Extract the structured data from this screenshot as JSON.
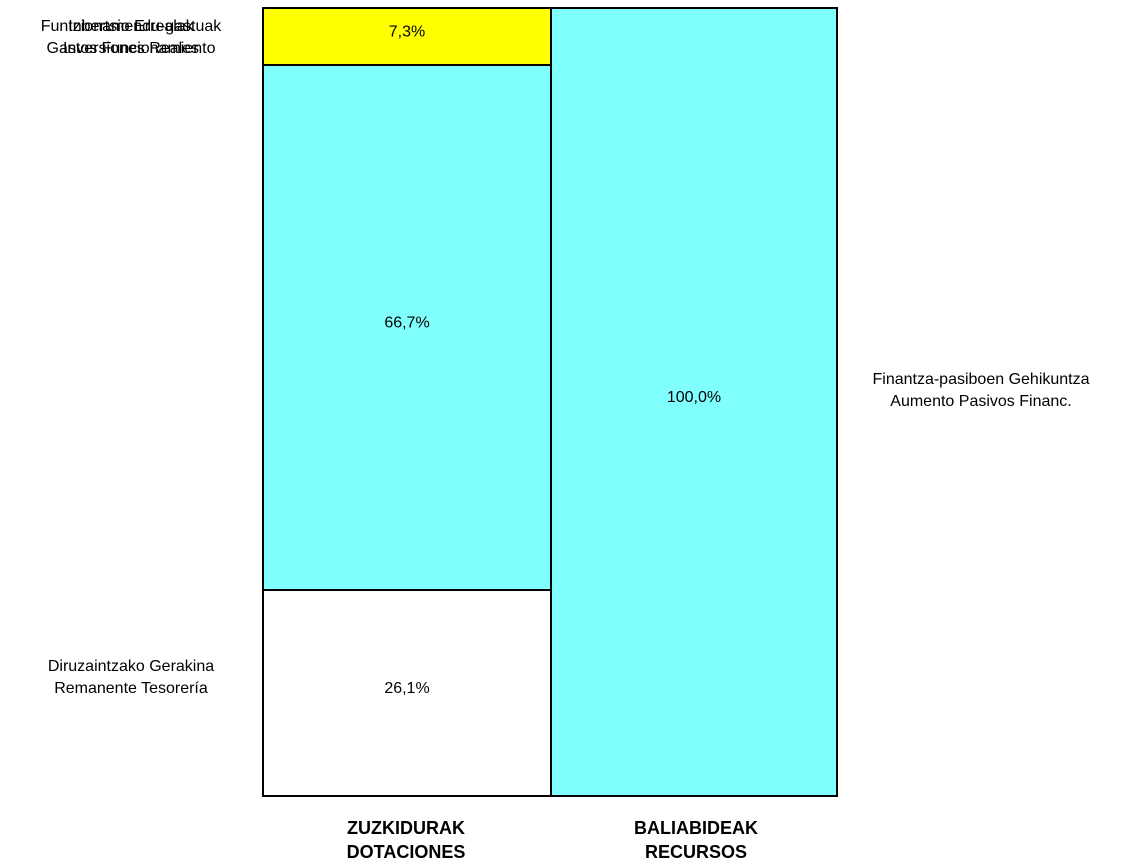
{
  "chart_data": {
    "type": "bar",
    "stacked": true,
    "percent": true,
    "ylim": [
      0,
      100
    ],
    "grid": false,
    "categories": [
      {
        "label_line1": "ZUZKIDURAK",
        "label_line2": "DOTACIONES"
      },
      {
        "label_line1": "BALIABIDEAK",
        "label_line2": "RECURSOS"
      }
    ],
    "series": [
      {
        "category": 0,
        "value": 26.1,
        "display": "26,1%",
        "color": "#ffffff",
        "name_line1": "Diruzaintzako Gerakina",
        "name_line2": "Remanente Tesorería"
      },
      {
        "category": 0,
        "value": 66.7,
        "display": "66,7%",
        "color": "#80ffff",
        "name_line1": "Inbertsio Errealak",
        "name_line2": "Inversiones Reales"
      },
      {
        "category": 0,
        "value": 7.3,
        "display": "7,3%",
        "color": "#ffff00",
        "name_line1": "Funtzionamendu-gastuak",
        "name_line2": "Gastos Funcionamiento"
      },
      {
        "category": 1,
        "value": 100.0,
        "display": "100,0%",
        "color": "#80ffff",
        "name_line1": "Finantza-pasiboen Gehikuntza",
        "name_line2": "Aumento Pasivos Financ."
      }
    ]
  }
}
